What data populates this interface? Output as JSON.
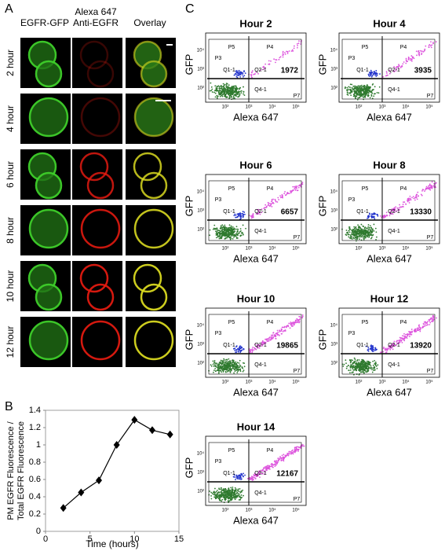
{
  "panel_a": {
    "label": "A",
    "columns": [
      "EGFR-GFP",
      "Alexa 647 Anti-EGFR",
      "Overlay"
    ],
    "rows": [
      "2 hour",
      "4 hour",
      "6 hour",
      "8 hour",
      "10 hour",
      "12 hour"
    ]
  },
  "chart_data": {
    "type": "line",
    "label": "B",
    "x": [
      2,
      4,
      6,
      8,
      10,
      12,
      14
    ],
    "series": [
      {
        "color": "#000000",
        "values": [
          0.27,
          0.45,
          0.59,
          1.0,
          1.29,
          1.17,
          1.12
        ]
      }
    ],
    "xlim": [
      0,
      15
    ],
    "xticks": [
      0,
      5,
      10,
      15
    ],
    "ylim": [
      0,
      1.4
    ],
    "yticks": [
      0,
      0.2,
      0.4,
      0.6,
      0.8,
      1,
      1.2,
      1.4
    ],
    "xlabel": "Time (hours)",
    "ylabel": [
      "PM EGFR Fluorescence /",
      "Total EGFR Fluorescence"
    ]
  },
  "panel_c": {
    "label": "C",
    "xlabel": "Alexa 647",
    "ylabel": "GFP",
    "axis_ticks": [
      "10²",
      "10³",
      "10⁴",
      "10⁵"
    ],
    "gates": [
      "P3",
      "P5",
      "P4",
      "Q1-1",
      "Q2-1",
      "Q4-1",
      "P7"
    ],
    "plots": [
      {
        "title": "Hour 2",
        "count": 1972
      },
      {
        "title": "Hour 4",
        "count": 3935
      },
      {
        "title": "Hour 6",
        "count": 6657
      },
      {
        "title": "Hour 8",
        "count": 13330
      },
      {
        "title": "Hour 10",
        "count": 19865
      },
      {
        "title": "Hour 12",
        "count": 13920
      },
      {
        "title": "Hour 14",
        "count": 12167
      }
    ]
  }
}
